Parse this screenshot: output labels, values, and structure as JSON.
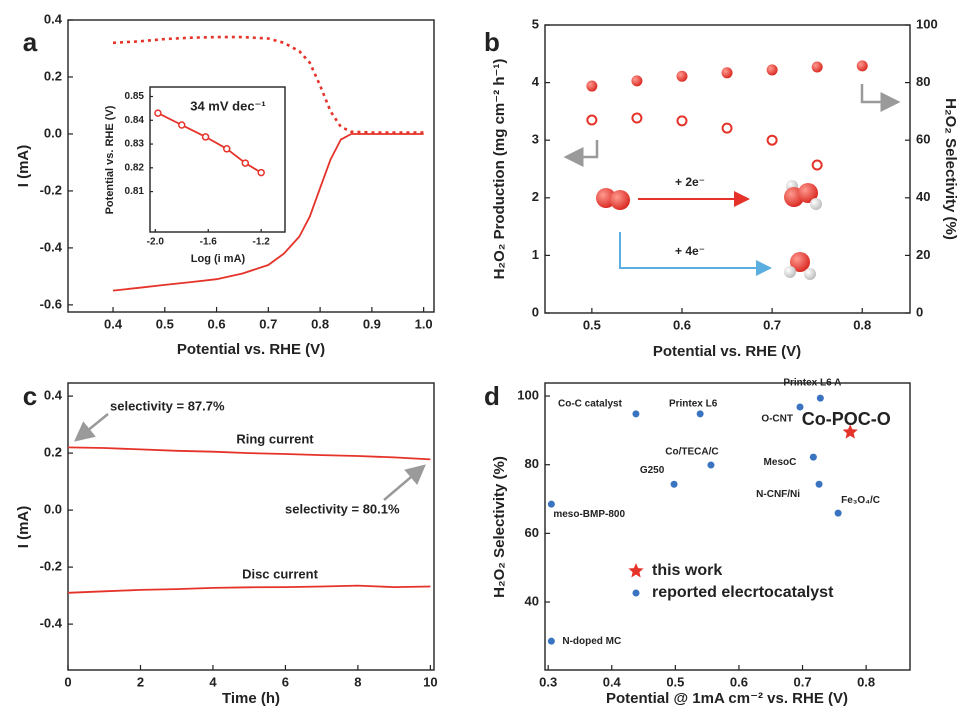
{
  "chart_data": [
    {
      "type": "line",
      "panel_label": "a",
      "xlabel": "Potential vs. RHE (V)",
      "ylabel": "I (mA)",
      "xlim": [
        0.313,
        1.02
      ],
      "ylim": [
        -0.625,
        0.4
      ],
      "xticks": [
        0.4,
        0.5,
        0.6,
        0.7,
        0.8,
        0.9,
        {
          "value": 1,
          "label": "1.0"
        }
      ],
      "yticks": [
        -0.6,
        -0.4,
        -0.2,
        {
          "value": 0,
          "label": "0.0"
        },
        0.2,
        0.4
      ],
      "x": [
        0.4,
        0.45,
        0.5,
        0.55,
        0.6,
        0.65,
        0.7,
        0.73,
        0.76,
        0.78,
        0.8,
        0.82,
        0.84,
        0.86,
        0.9,
        0.95,
        1.0
      ],
      "series": [
        {
          "color": "#e5332a",
          "style": "solid",
          "values": [
            -0.55,
            -0.54,
            -0.53,
            -0.52,
            -0.51,
            -0.49,
            -0.46,
            -0.42,
            -0.36,
            -0.29,
            -0.19,
            -0.09,
            -0.02,
            0.0,
            0.0,
            0.0,
            0.0
          ]
        },
        {
          "color": "#e5332a",
          "style": "dotted",
          "values": [
            0.32,
            0.325,
            0.333,
            0.338,
            0.34,
            0.34,
            0.335,
            0.32,
            0.29,
            0.25,
            0.17,
            0.08,
            0.025,
            0.008,
            0.005,
            0.005,
            0.005
          ]
        }
      ]
    },
    {
      "type": "line",
      "xlabel": "Log (i mA)",
      "ylabel": "Potential vs. RHE (V)",
      "xlim": [
        -2.04,
        -1.02
      ],
      "ylim": [
        0.793,
        0.854
      ],
      "xticks": [
        {
          "value": -2,
          "label": "-2.0"
        },
        -1.6,
        -1.2
      ],
      "yticks": [
        0.81,
        0.82,
        0.83,
        0.84,
        0.85
      ],
      "x": [
        -1.98,
        -1.8,
        -1.62,
        -1.46,
        -1.32,
        -1.2
      ],
      "series": [
        {
          "color": "#e5332a",
          "style": "solid",
          "markers": "open",
          "values": [
            0.843,
            0.838,
            0.833,
            0.828,
            0.822,
            0.818
          ]
        }
      ],
      "annotations": [
        {
          "text": "34 mV dec⁻¹",
          "color": "#e5332a"
        }
      ]
    },
    {
      "type": "scatter",
      "panel_label": "b",
      "xlabel": "Potential vs. RHE (V)",
      "ylabel": "H₂O₂ Production (mg cm⁻² h⁻¹)",
      "y2label": "H₂O₂ Selectivity (%)",
      "xlim": [
        0.448,
        0.853
      ],
      "ylim": [
        0,
        5
      ],
      "y2lim": [
        0,
        100
      ],
      "xticks": [
        0.5,
        0.6,
        0.7,
        0.8
      ],
      "yticks": [
        0,
        1,
        2,
        3,
        4,
        5
      ],
      "y2ticks": [
        0,
        20,
        40,
        60,
        80,
        100
      ],
      "x": [
        0.5,
        0.55,
        0.6,
        0.65,
        0.7,
        0.75,
        0.8
      ],
      "series": [
        {
          "color": "#e5332a",
          "marker": "filled",
          "values": [
            3.94,
            4.03,
            4.11,
            4.17,
            4.22,
            4.27,
            4.29
          ]
        },
        {
          "color": "#e5332a",
          "marker": "open",
          "axis": "y2",
          "values": [
            67,
            67.7,
            66.7,
            64.2,
            60,
            51.4,
            null
          ]
        }
      ],
      "annotations": [
        {
          "text": "+ 2e⁻",
          "color": "#222"
        },
        {
          "text": "+ 4e⁻",
          "color": "#222"
        }
      ]
    },
    {
      "type": "line",
      "panel_label": "c",
      "xlabel": "Time (h)",
      "ylabel": "I (mA)",
      "xlim": [
        0,
        10.1
      ],
      "ylim": [
        -0.561,
        0.446
      ],
      "xticks": [
        0,
        2,
        4,
        6,
        8,
        10
      ],
      "yticks": [
        -0.4,
        -0.2,
        {
          "value": 0,
          "label": "0.0"
        },
        0.2,
        0.4
      ],
      "x": [
        0,
        1,
        2,
        3,
        4,
        5,
        6,
        7,
        8,
        9,
        10
      ],
      "series": [
        {
          "color": "#e5332a",
          "style": "solid",
          "values": [
            0.22,
            0.218,
            0.213,
            0.208,
            0.205,
            0.2,
            0.197,
            0.193,
            0.19,
            0.185,
            0.178
          ]
        },
        {
          "color": "#e5332a",
          "style": "solid",
          "values": [
            -0.29,
            -0.285,
            -0.28,
            -0.277,
            -0.273,
            -0.271,
            -0.27,
            -0.268,
            -0.265,
            -0.27,
            -0.268
          ]
        }
      ],
      "annotations": [
        {
          "text": "selectivity = 87.7%",
          "color": "#9a9a9a"
        },
        {
          "text": "Ring current",
          "color": "#222"
        },
        {
          "text": "selectivity = 80.1%",
          "color": "#9a9a9a"
        },
        {
          "text": "Disc current",
          "color": "#222"
        }
      ]
    },
    {
      "type": "scatter",
      "panel_label": "d",
      "xlabel": "Potential @ 1mA cm⁻² vs. RHE (V)",
      "ylabel": "H₂O₂ Selectivity (%)",
      "xlim": [
        0.295,
        0.869
      ],
      "ylim": [
        20.2,
        103.8
      ],
      "xticks": [
        0.3,
        0.4,
        0.5,
        0.6,
        0.7,
        0.8
      ],
      "yticks": [
        40,
        60,
        80,
        100
      ],
      "series": [
        {
          "name": "this work",
          "color": "#e5332a",
          "marker": "star",
          "x": [
            0.775
          ],
          "values": [
            89.5
          ],
          "labels": [
            "Co-POC-O"
          ]
        },
        {
          "name": "reported elecrtocatalyst",
          "color": "#3a74c0",
          "marker": "dot",
          "x": [
            0.438,
            0.539,
            0.728,
            0.696,
            0.556,
            0.498,
            0.717,
            0.726,
            0.756,
            0.305,
            0.305
          ],
          "values": [
            94.8,
            94.8,
            99.4,
            96.8,
            79.9,
            74.3,
            82.2,
            74.3,
            65.9,
            68.5,
            28.6
          ],
          "labels": [
            "Co-C catalyst",
            "Printex L6",
            "Printex L6 A",
            "O-CNT",
            "Co/TECA/C",
            "G250",
            "MesoC",
            "N-CNF/Ni",
            "Fe₃O₄/C",
            "meso-BMP-800",
            "N-doped MC"
          ]
        }
      ]
    }
  ]
}
